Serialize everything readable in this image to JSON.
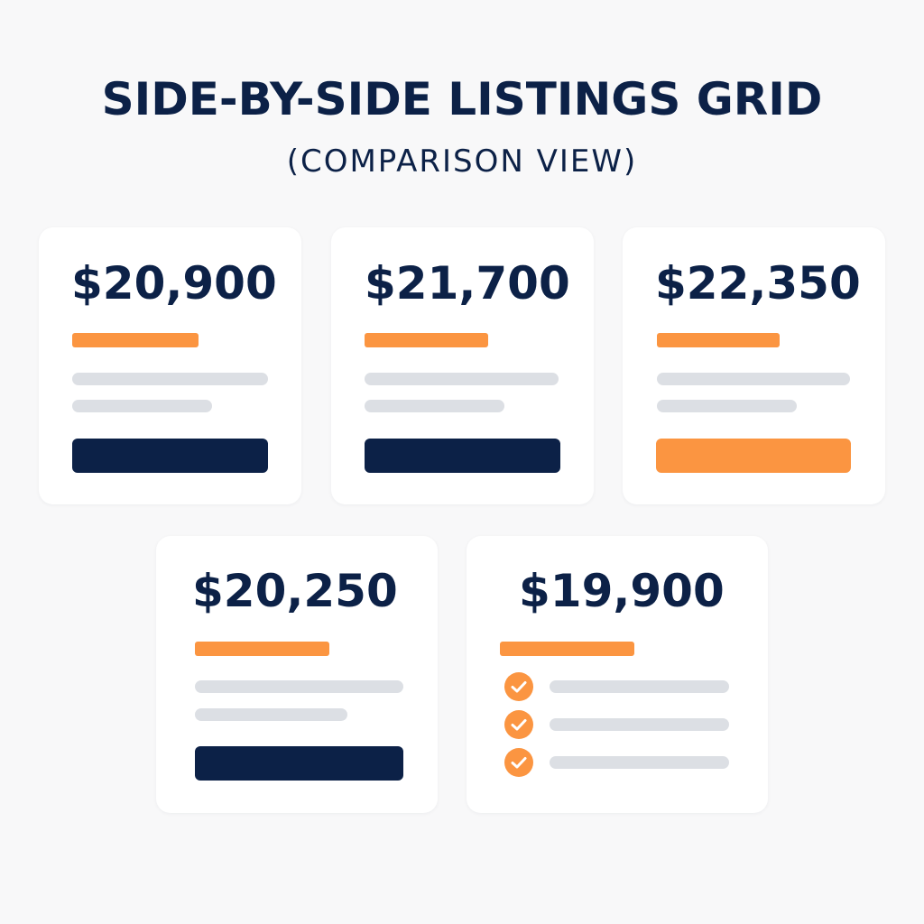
{
  "header": {
    "title": "SIDE-BY-SIDE LISTINGS GRID",
    "subtitle": "(COMPARISON VIEW)"
  },
  "colors": {
    "navy": "#0c2147",
    "accent_orange": "#fb9541",
    "placeholder_gray": "#dcdfe4",
    "background": "#f8f8f9"
  },
  "listings": [
    {
      "price": "$20,900",
      "action_style": "navy"
    },
    {
      "price": "$21,700",
      "action_style": "navy"
    },
    {
      "price": "$22,350",
      "action_style": "orange"
    },
    {
      "price": "$20,250",
      "action_style": "navy"
    },
    {
      "price": "$19,900",
      "features_checklist": [
        "check-icon",
        "check-icon",
        "check-icon"
      ]
    }
  ]
}
